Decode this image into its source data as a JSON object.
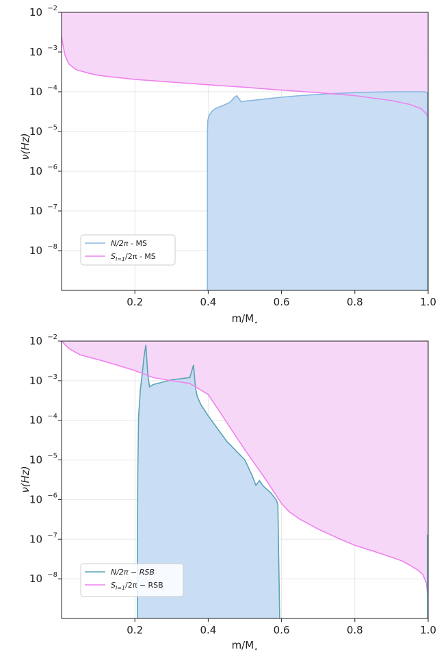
{
  "chart_data": [
    {
      "type": "area",
      "xlabel": "m/M",
      "xlabel_sub": "⋆",
      "ylabel": "ν(Hz)",
      "x_ticks": [
        "0.2",
        "0.4",
        "0.6",
        "0.8",
        "1.0"
      ],
      "y_ticks": [
        {
          "base": "10",
          "exp": "−2"
        },
        {
          "base": "10",
          "exp": "−3"
        },
        {
          "base": "10",
          "exp": "−4"
        },
        {
          "base": "10",
          "exp": "−5"
        },
        {
          "base": "10",
          "exp": "−6"
        },
        {
          "base": "10",
          "exp": "−7"
        },
        {
          "base": "10",
          "exp": "−8"
        }
      ],
      "xlim": [
        0.0,
        1.0
      ],
      "ylim_log10": [
        -9.0,
        -2.0
      ],
      "yscale": "log",
      "grid": true,
      "legend_position": "lower-left",
      "series": [
        {
          "name": "N/2π - MS",
          "legend_main": "N/2π",
          "legend_suffix": " - MS",
          "color": "#86b6e0",
          "fill": "#c6dcf3",
          "x": [
            0.398,
            0.399,
            0.402,
            0.41,
            0.42,
            0.44,
            0.46,
            0.47,
            0.478,
            0.485,
            0.49,
            0.5,
            0.55,
            0.6,
            0.65,
            0.7,
            0.75,
            0.8,
            0.85,
            0.9,
            0.95,
            0.99,
            0.998
          ],
          "y": [
            1e-05,
            1.9e-05,
            2.5e-05,
            3.2e-05,
            3.8e-05,
            4.5e-05,
            5.5e-05,
            7e-05,
            8e-05,
            6.5e-05,
            5.6e-05,
            5.8e-05,
            6.5e-05,
            7.3e-05,
            8e-05,
            8.6e-05,
            9.1e-05,
            9.5e-05,
            9.8e-05,
            0.0001,
            0.0001,
            0.0001,
            9.5e-05
          ]
        },
        {
          "name": "S_{l=1}/2π - MS",
          "legend_main": "S",
          "legend_sub": "l=1",
          "legend_rest": "/2π - MS",
          "color": "#ee82ee",
          "fill": "#f7d5f7",
          "x": [
            0.0,
            0.005,
            0.01,
            0.02,
            0.04,
            0.07,
            0.1,
            0.15,
            0.2,
            0.3,
            0.4,
            0.5,
            0.6,
            0.7,
            0.8,
            0.9,
            0.95,
            0.98,
            0.995,
            1.0
          ],
          "y": [
            0.0025,
            0.0013,
            0.0008,
            0.0005,
            0.00036,
            0.0003,
            0.00026,
            0.00023,
            0.000205,
            0.000175,
            0.00015,
            0.00013,
            0.00011,
            9.5e-05,
            8e-05,
            6e-05,
            4.8e-05,
            3.8e-05,
            2.8e-05,
            2e-05
          ]
        }
      ]
    },
    {
      "type": "area",
      "xlabel": "m/M",
      "xlabel_sub": "⋆",
      "ylabel": "ν(Hz)",
      "x_ticks": [
        "0.2",
        "0.4",
        "0.6",
        "0.8",
        "1.0"
      ],
      "y_ticks": [
        {
          "base": "10",
          "exp": "−2"
        },
        {
          "base": "10",
          "exp": "−3"
        },
        {
          "base": "10",
          "exp": "−4"
        },
        {
          "base": "10",
          "exp": "−5"
        },
        {
          "base": "10",
          "exp": "−6"
        },
        {
          "base": "10",
          "exp": "−7"
        },
        {
          "base": "10",
          "exp": "−8"
        }
      ],
      "xlim": [
        0.0,
        1.0
      ],
      "ylim_log10": [
        -9.0,
        -2.0
      ],
      "yscale": "log",
      "grid": true,
      "legend_position": "lower-left",
      "series": [
        {
          "name": "N/2π − RSB",
          "legend_main": "N/2π − RSB",
          "color": "#5aa2b4",
          "fill": "#c6dcf3",
          "x": [
            0.207,
            0.208,
            0.21,
            0.215,
            0.22,
            0.225,
            0.23,
            0.235,
            0.24,
            0.25,
            0.3,
            0.35,
            0.36,
            0.365,
            0.37,
            0.38,
            0.4,
            0.45,
            0.5,
            0.52,
            0.53,
            0.54,
            0.55,
            0.57,
            0.585,
            0.59,
            0.595
          ],
          "y": [
            1e-07,
            5e-06,
            0.00012,
            0.0006,
            0.0015,
            0.004,
            0.008,
            0.0015,
            0.0007,
            0.0008,
            0.00105,
            0.0012,
            0.0025,
            0.0007,
            0.0004,
            0.00025,
            0.00013,
            3e-05,
            1e-05,
            4e-06,
            2.3e-06,
            3e-06,
            2.2e-06,
            1.5e-06,
            1e-06,
            7.5e-07,
            1e-09
          ]
        },
        {
          "name": "S_{l=1}/2π − RSB",
          "legend_main": "S",
          "legend_sub": "l=1",
          "legend_rest": "/2π − RSB",
          "color": "#ee82ee",
          "fill": "#f7d5f7",
          "x": [
            0.0,
            0.01,
            0.02,
            0.05,
            0.1,
            0.15,
            0.2,
            0.25,
            0.3,
            0.35,
            0.4,
            0.45,
            0.5,
            0.55,
            0.6,
            0.62,
            0.65,
            0.7,
            0.75,
            0.8,
            0.85,
            0.9,
            0.93,
            0.95,
            0.97,
            0.985,
            0.995,
            1.0
          ],
          "y": [
            0.01,
            0.008,
            0.0065,
            0.0045,
            0.0034,
            0.0025,
            0.0018,
            0.0012,
            0.001,
            0.00085,
            0.00045,
            9e-05,
            1.8e-05,
            4e-06,
            8e-07,
            5e-07,
            3.2e-07,
            1.8e-07,
            1.1e-07,
            7e-08,
            5e-08,
            3.5e-08,
            2.8e-08,
            2.2e-08,
            1.7e-08,
            1.3e-08,
            8e-09,
            3e-09
          ]
        }
      ]
    }
  ]
}
